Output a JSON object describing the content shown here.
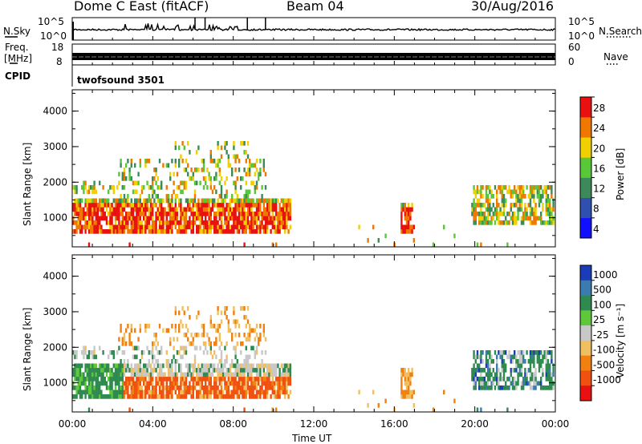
{
  "header": {
    "station": "Dome C East (fitACF)",
    "beam": "Beam 04",
    "date": "30/Aug/2016"
  },
  "status_panels": {
    "nsky_label": "N.Sky",
    "nsky_ticks": [
      "10^5",
      "10^0"
    ],
    "nsearch_label": "N.Search",
    "nsearch_ticks": [
      "10^5",
      "10^0"
    ],
    "freq_label": "Freq.",
    "freq_unit": "[MHz]",
    "freq_ticks": [
      "18",
      "8"
    ],
    "nave_label": "Nave",
    "nave_ticks": [
      "60",
      "0"
    ],
    "cpid_label": "CPID",
    "cpid_value": "twofsound 3501"
  },
  "chart_data": [
    {
      "type": "heatmap",
      "name": "power",
      "xlabel": "Time UT",
      "ylabel": "Slant Range [km]",
      "x_ticks": [
        "00:00",
        "04:00",
        "08:00",
        "12:00",
        "16:00",
        "20:00",
        "00:00"
      ],
      "x_range_hours": [
        0,
        24
      ],
      "y_ticks": [
        1000,
        2000,
        3000,
        4000
      ],
      "ylim": [
        180,
        4600
      ],
      "colorbar_label": "Power [dB]",
      "colorbar_ticks": [
        "4",
        "8",
        "12",
        "16",
        "20",
        "24",
        "28"
      ],
      "colorbar_range": [
        0,
        32
      ],
      "colors": [
        "#1010ff",
        "#3050b0",
        "#3c8a5a",
        "#58c838",
        "#f0d000",
        "#f07800",
        "#e81010"
      ],
      "grid": true
    },
    {
      "type": "heatmap",
      "name": "velocity",
      "xlabel": "Time UT",
      "ylabel": "Slant Range [km]",
      "x_ticks": [
        "00:00",
        "04:00",
        "08:00",
        "12:00",
        "16:00",
        "20:00",
        "00:00"
      ],
      "x_range_hours": [
        0,
        24
      ],
      "y_ticks": [
        1000,
        2000,
        3000,
        4000
      ],
      "ylim": [
        180,
        4600
      ],
      "colorbar_label": "Velocity [m s⁻¹]",
      "colorbar_ticks": [
        "1000",
        "500",
        "100",
        "25",
        "-25",
        "-100",
        "-500",
        "-1000"
      ],
      "colors": [
        "#1a3cb8",
        "#3c7bb0",
        "#2f8a4f",
        "#5ec83a",
        "#c8c8c8",
        "#f0c060",
        "#f08010",
        "#f05010",
        "#e81010"
      ],
      "grid": true
    }
  ]
}
